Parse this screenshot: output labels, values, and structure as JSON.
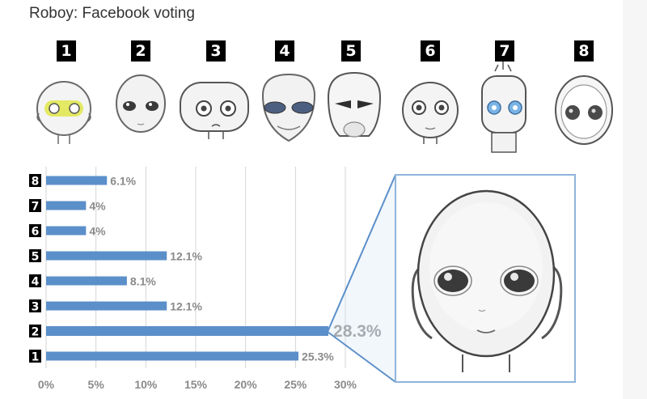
{
  "title": "Roboy: Facebook voting",
  "faces": [
    {
      "number": "1",
      "icon": "robot-face-yellow-eyes-icon"
    },
    {
      "number": "2",
      "icon": "robot-face-dark-eyes-icon"
    },
    {
      "number": "3",
      "icon": "robot-face-square-icon"
    },
    {
      "number": "4",
      "icon": "robot-face-alien-icon"
    },
    {
      "number": "5",
      "icon": "robot-face-skull-icon"
    },
    {
      "number": "6",
      "icon": "robot-face-round-icon"
    },
    {
      "number": "7",
      "icon": "robot-face-blue-eyes-icon"
    },
    {
      "number": "8",
      "icon": "robot-face-helmet-icon"
    }
  ],
  "chart_data": {
    "type": "bar",
    "orientation": "horizontal",
    "categories": [
      "1",
      "2",
      "3",
      "4",
      "5",
      "6",
      "7",
      "8"
    ],
    "values": [
      25.3,
      28.3,
      12.1,
      8.1,
      12.1,
      4,
      4,
      6.1
    ],
    "value_labels": [
      "25.3%",
      "28.3%",
      "12.1%",
      "8.1%",
      "12.1%",
      "4%",
      "4%",
      "6.1%"
    ],
    "highlighted_category": "2",
    "xlim": [
      0,
      30
    ],
    "xticks": [
      "0%",
      "5%",
      "10%",
      "15%",
      "20%",
      "25%",
      "30%"
    ],
    "grid": true,
    "bar_color": "#5b8fc9",
    "label_color": "#8a8a8a",
    "inset_image": "robot-face-2-enlarged-icon"
  }
}
